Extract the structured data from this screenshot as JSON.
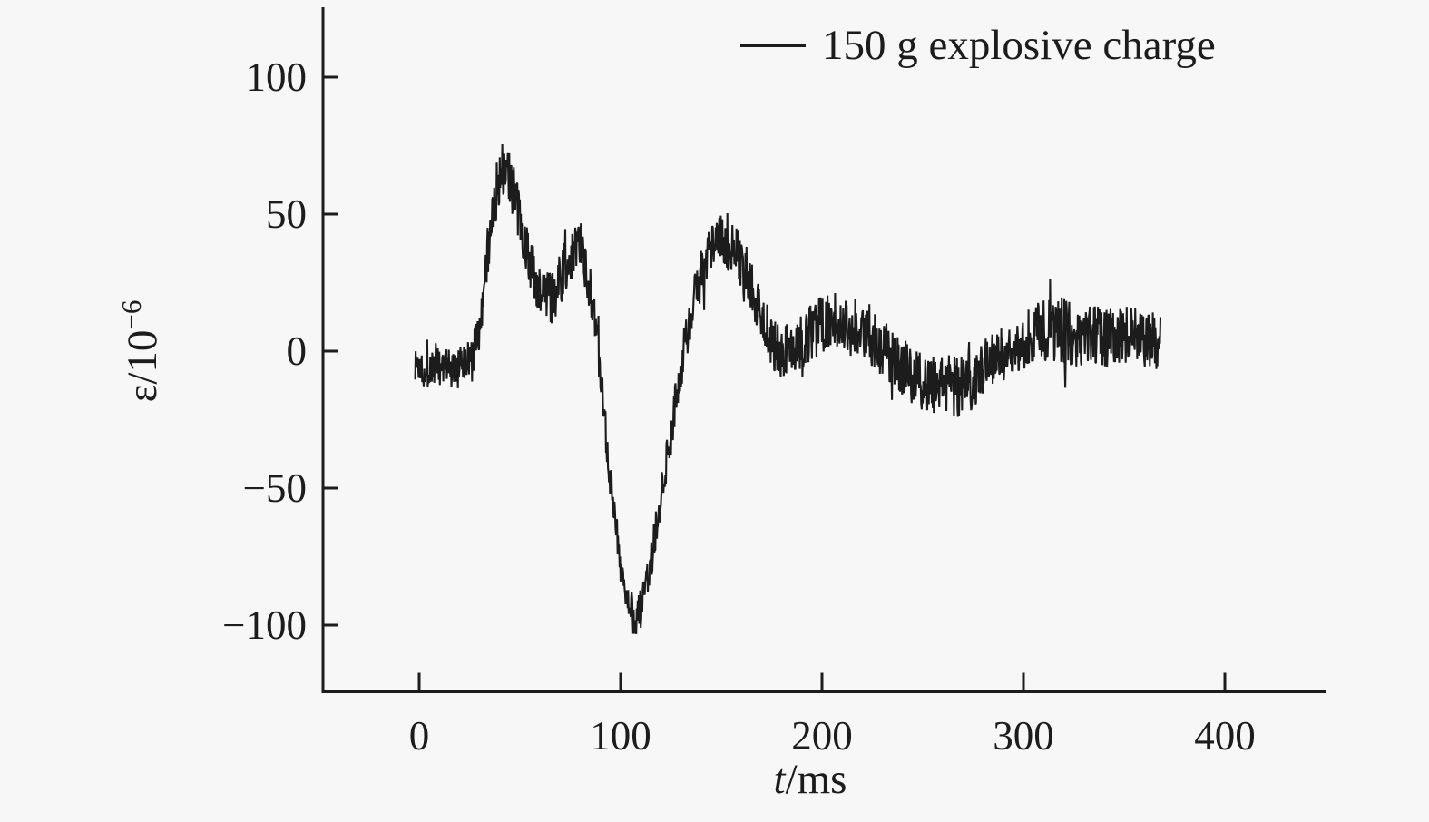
{
  "figure": {
    "background": "#f7f7f7",
    "ink": "#1c1c1c"
  },
  "legend": {
    "label": "150 g explosive charge"
  },
  "axis_labels": {
    "y_base": "ε/10",
    "y_exp": "−6",
    "x_italic": "t",
    "x_rest": "/ms"
  },
  "chart_data": {
    "type": "line",
    "title": "",
    "xlabel": "t/ms",
    "ylabel": "ε/10⁻⁶",
    "legend": [
      "150 g explosive charge"
    ],
    "legend_position": "top-right",
    "grid": false,
    "line_color": "#1c1c1c",
    "x_ticks": [
      0,
      100,
      200,
      300,
      400
    ],
    "x_tick_labels": [
      "0",
      "100",
      "200",
      "300",
      "400"
    ],
    "y_ticks": [
      100,
      50,
      0,
      -50,
      -100
    ],
    "y_tick_labels": [
      "100",
      "50",
      "0",
      "−50",
      "−100"
    ],
    "xlim": [
      -48,
      450
    ],
    "ylim": [
      -125,
      125
    ],
    "trace_extent_ms": [
      -2,
      368
    ],
    "series": [
      {
        "name": "150 g explosive charge",
        "color": "#1c1c1c",
        "description": "noisy strain gauge signal: baseline ~0, first peak ~+68 (spikes to ~85) at t~42 ms, secondary bump ~+38 at t~78 ms, deep minimum ~-97 (spikes to ~-107) at t~107 ms, second peak ~+40 at t~150 ms, then decaying oscillation about 0 until t~368 ms",
        "mean_t_ms": [
          0,
          6,
          12,
          18,
          24,
          27,
          30,
          34,
          38,
          41,
          44,
          47,
          50,
          54,
          58,
          62,
          66,
          70,
          74,
          78,
          82,
          85,
          88,
          92,
          96,
          100,
          104,
          107,
          110,
          114,
          118,
          123,
          128,
          132,
          136,
          140,
          145,
          150,
          155,
          160,
          165,
          170,
          175,
          180,
          185,
          190,
          196,
          202,
          208,
          214,
          220,
          226,
          232,
          238,
          244,
          250,
          256,
          262,
          268,
          274,
          280,
          286,
          292,
          298,
          304,
          310,
          316,
          322,
          328,
          334,
          340,
          346,
          352,
          358,
          364,
          368
        ],
        "mean_eps": [
          -5,
          -6,
          -5,
          -7,
          -5,
          -2,
          10,
          35,
          57,
          68,
          65,
          58,
          48,
          35,
          25,
          19,
          20,
          26,
          34,
          38,
          34,
          22,
          5,
          -25,
          -55,
          -78,
          -93,
          -97,
          -94,
          -82,
          -63,
          -40,
          -16,
          2,
          16,
          28,
          36,
          40,
          38,
          33,
          24,
          12,
          4,
          0,
          1,
          4,
          8,
          10,
          11,
          9,
          8,
          5,
          0,
          -4,
          -8,
          -11,
          -12,
          -13,
          -13,
          -11,
          -7,
          -3,
          0,
          3,
          5,
          7,
          8,
          7,
          6,
          6,
          5,
          5,
          6,
          4,
          4,
          3
        ],
        "noise_amp_eps": [
          8,
          8,
          8,
          8,
          8,
          8,
          9,
          10,
          10,
          11,
          10,
          10,
          9,
          9,
          10,
          10,
          10,
          10,
          10,
          10,
          10,
          9,
          8,
          7,
          7,
          7,
          7,
          8,
          8,
          7,
          7,
          8,
          8,
          9,
          9,
          10,
          10,
          10,
          10,
          10,
          10,
          10,
          10,
          10,
          10,
          10,
          11,
          11,
          11,
          11,
          11,
          11,
          11,
          11,
          11,
          11,
          11,
          11,
          11,
          11,
          11,
          10,
          10,
          11,
          11,
          12,
          12,
          12,
          12,
          12,
          11,
          11,
          11,
          11,
          11,
          11
        ],
        "noise_spike_extra_eps": 11,
        "noise_spike_probability": 0.07,
        "sample_step_ms": 0.25
      }
    ]
  }
}
